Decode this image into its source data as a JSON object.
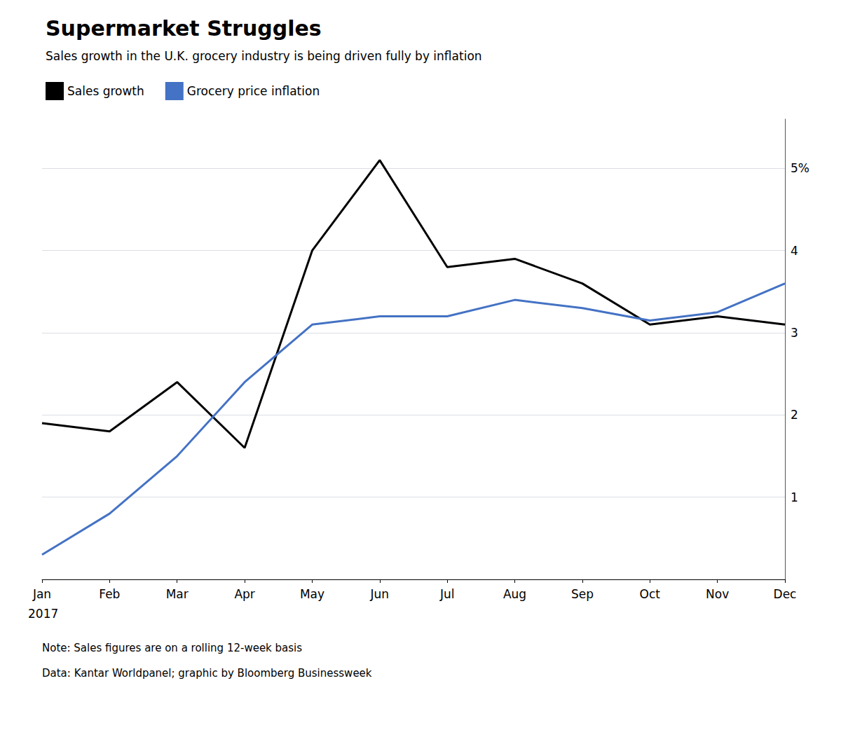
{
  "chart_data": {
    "type": "line",
    "title": "Supermarket Struggles",
    "subtitle": "Sales growth in the U.K. grocery industry is being driven fully by inflation",
    "categories": [
      "Jan",
      "Feb",
      "Mar",
      "Apr",
      "May",
      "Jun",
      "Jul",
      "Aug",
      "Sep",
      "Oct",
      "Nov",
      "Dec"
    ],
    "series": [
      {
        "name": "Sales growth",
        "color": "#000000",
        "values": [
          1.9,
          1.8,
          2.4,
          1.6,
          4.0,
          5.1,
          3.8,
          3.9,
          3.6,
          3.1,
          3.2,
          3.1
        ]
      },
      {
        "name": "Grocery price inflation",
        "color": "#4472C4",
        "values": [
          0.3,
          0.8,
          1.5,
          2.4,
          3.1,
          3.2,
          3.2,
          3.4,
          3.3,
          3.15,
          3.25,
          3.6
        ]
      }
    ],
    "ylim": [
      0,
      5.6
    ],
    "yticks": [
      1,
      2,
      3,
      4,
      {
        "value": 5,
        "label": "5%"
      }
    ],
    "grid": true,
    "legend": "top-left",
    "annotations": [
      {
        "text": "2017",
        "x": "Jan"
      }
    ],
    "notes": [
      "Note: Sales figures are on a rolling 12-week basis",
      "Data: Kantar Worldpanel; graphic by Bloomberg Businessweek"
    ]
  }
}
